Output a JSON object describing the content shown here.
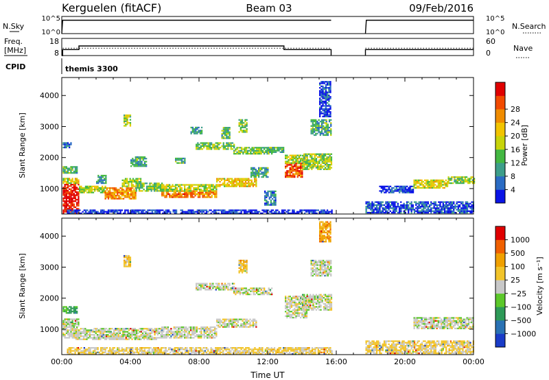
{
  "header": {
    "station": "Kerguelen (fitACF)",
    "beam": "Beam 03",
    "date": "09/Feb/2016"
  },
  "chart_data": [
    {
      "type": "line",
      "panel": "noise",
      "left_label": "N.Sky",
      "right_label": "N.Search",
      "left_ticks": [
        "10^5",
        "10^0"
      ],
      "right_ticks": [
        "10^5",
        "10^0"
      ],
      "series": [
        {
          "name": "N.Sky",
          "style": "solid",
          "segments": [
            {
              "x": [
                0.0,
                0.05,
                0.1,
                15.7
              ],
              "y": [
                0,
                3.9,
                3.9,
                3.9
              ]
            },
            {
              "x": [
                17.7,
                17.75,
                24.0
              ],
              "y": [
                0,
                3.9,
                3.9
              ]
            }
          ]
        },
        {
          "name": "N.Search",
          "style": "dotted",
          "segments": []
        }
      ]
    },
    {
      "type": "line",
      "panel": "frequency",
      "left_label_lines": [
        "Freq.",
        "[MHz]"
      ],
      "right_label": "Nave",
      "left_ticks": [
        "18",
        "8"
      ],
      "right_ticks": [
        "60",
        "0"
      ],
      "ylim": [
        8,
        18
      ],
      "series": [
        {
          "name": "Freq.",
          "style": "solid",
          "segments": [
            {
              "x": [
                0.0,
                0.05,
                0.05,
                1.0,
                1.0,
                12.95,
                12.95,
                15.7,
                15.7
              ],
              "y": [
                8,
                8,
                11.5,
                11.5,
                13.6,
                13.6,
                11.5,
                11.5,
                8
              ]
            },
            {
              "x": [
                17.7,
                17.7,
                24.0
              ],
              "y": [
                8,
                11.5,
                11.5
              ]
            }
          ]
        },
        {
          "name": "Nave",
          "style": "dotted",
          "segments": [
            {
              "x": [
                0.05,
                15.7
              ],
              "y": [
                12.3,
                12.3
              ]
            },
            {
              "x": [
                17.7,
                24.0
              ],
              "y": [
                12.3,
                12.3
              ]
            }
          ]
        }
      ]
    },
    {
      "type": "table",
      "panel": "cpid",
      "label": "CPID",
      "entries": [
        {
          "time": 0.05,
          "text": "themis 3300"
        }
      ]
    },
    {
      "type": "heatmap",
      "panel": "power",
      "ylabel": "Slant Range [km]",
      "xlim": [
        0,
        24
      ],
      "ylim": [
        180,
        4580
      ],
      "yticks": [
        1000,
        2000,
        3000,
        4000
      ],
      "colorbar": {
        "label": "Power [dB]",
        "ticks": [
          "4",
          "8",
          "12",
          "16",
          "20",
          "24",
          "28"
        ],
        "colors": [
          "#0a14e6",
          "#2b6cc4",
          "#3d9e8a",
          "#44b842",
          "#c8d40a",
          "#f2c400",
          "#f08c00",
          "#f24a00",
          "#e00000"
        ]
      },
      "features": [
        {
          "t0": 0.05,
          "t1": 1.0,
          "r0": 180,
          "r1": 1150,
          "level": 0.97
        },
        {
          "t0": 0.05,
          "t1": 1.0,
          "r0": 1150,
          "r1": 1300,
          "level": 0.55
        },
        {
          "t0": 0.05,
          "t1": 0.85,
          "r0": 1480,
          "r1": 1720,
          "level": 0.38
        },
        {
          "t0": 0.05,
          "t1": 0.5,
          "r0": 2300,
          "r1": 2450,
          "level": 0.15
        },
        {
          "t0": 1.0,
          "t1": 2.5,
          "r0": 850,
          "r1": 1050,
          "level": 0.5
        },
        {
          "t0": 2.0,
          "t1": 2.6,
          "r0": 1150,
          "r1": 1400,
          "level": 0.28
        },
        {
          "t0": 2.5,
          "t1": 4.3,
          "r0": 650,
          "r1": 1000,
          "level": 0.72
        },
        {
          "t0": 3.5,
          "t1": 4.6,
          "r0": 1050,
          "r1": 1300,
          "level": 0.45
        },
        {
          "t0": 3.6,
          "t1": 4.0,
          "r0": 3000,
          "r1": 3350,
          "level": 0.48
        },
        {
          "t0": 4.0,
          "t1": 4.9,
          "r0": 1700,
          "r1": 2000,
          "level": 0.3
        },
        {
          "t0": 4.3,
          "t1": 5.8,
          "r0": 900,
          "r1": 1150,
          "level": 0.42
        },
        {
          "t0": 5.8,
          "t1": 9.0,
          "r0": 700,
          "r1": 900,
          "level": 0.75
        },
        {
          "t0": 5.8,
          "t1": 9.0,
          "r0": 900,
          "r1": 1100,
          "level": 0.5
        },
        {
          "t0": 6.6,
          "t1": 7.2,
          "r0": 1800,
          "r1": 1950,
          "level": 0.32
        },
        {
          "t0": 7.8,
          "t1": 10.0,
          "r0": 2250,
          "r1": 2450,
          "level": 0.4
        },
        {
          "t0": 7.5,
          "t1": 8.2,
          "r0": 2750,
          "r1": 2950,
          "level": 0.28
        },
        {
          "t0": 9.0,
          "t1": 11.3,
          "r0": 1050,
          "r1": 1300,
          "level": 0.6
        },
        {
          "t0": 9.3,
          "t1": 9.8,
          "r0": 2600,
          "r1": 2950,
          "level": 0.36
        },
        {
          "t0": 10.0,
          "t1": 12.2,
          "r0": 2100,
          "r1": 2300,
          "level": 0.4
        },
        {
          "t0": 10.3,
          "t1": 10.8,
          "r0": 2800,
          "r1": 3200,
          "level": 0.42
        },
        {
          "t0": 11.0,
          "t1": 12.0,
          "r0": 1350,
          "r1": 1650,
          "level": 0.32
        },
        {
          "t0": 11.8,
          "t1": 12.5,
          "r0": 450,
          "r1": 900,
          "level": 0.22
        },
        {
          "t0": 12.0,
          "t1": 12.9,
          "r0": 2150,
          "r1": 2300,
          "level": 0.35
        },
        {
          "t0": 13.0,
          "t1": 14.0,
          "r0": 1350,
          "r1": 1800,
          "level": 0.82
        },
        {
          "t0": 13.0,
          "t1": 14.3,
          "r0": 1800,
          "r1": 2050,
          "level": 0.5
        },
        {
          "t0": 14.0,
          "t1": 15.7,
          "r0": 1600,
          "r1": 2100,
          "level": 0.45
        },
        {
          "t0": 14.5,
          "t1": 15.7,
          "r0": 2700,
          "r1": 3200,
          "level": 0.32
        },
        {
          "t0": 15.0,
          "t1": 15.7,
          "r0": 3300,
          "r1": 4450,
          "level": 0.1
        },
        {
          "t0": 0.3,
          "t1": 15.7,
          "r0": 180,
          "r1": 300,
          "level": 0.06
        },
        {
          "t0": 17.7,
          "t1": 24.0,
          "r0": 200,
          "r1": 550,
          "level": 0.12
        },
        {
          "t0": 20.5,
          "t1": 22.5,
          "r0": 1000,
          "r1": 1250,
          "level": 0.55
        },
        {
          "t0": 22.5,
          "t1": 24.0,
          "r0": 1150,
          "r1": 1350,
          "level": 0.45
        },
        {
          "t0": 18.5,
          "t1": 20.5,
          "r0": 850,
          "r1": 1050,
          "level": 0.1
        }
      ]
    },
    {
      "type": "heatmap",
      "panel": "velocity",
      "ylabel": "Slant Range [km]",
      "xlabel": "Time UT",
      "xlim": [
        0,
        24
      ],
      "ylim": [
        180,
        4580
      ],
      "yticks": [
        1000,
        2000,
        3000,
        4000
      ],
      "xtick_labels": [
        "00:00",
        "04:00",
        "08:00",
        "12:00",
        "16:00",
        "20:00",
        "00:00"
      ],
      "xticks": [
        0,
        4,
        8,
        12,
        16,
        20,
        24
      ],
      "colorbar": {
        "label": "Velocity [m s⁻¹]",
        "ticks": [
          "1000",
          "500",
          "100",
          "25",
          "−25",
          "−100",
          "−500",
          "−1000"
        ],
        "colors": [
          "#1a3cc8",
          "#2a72b4",
          "#2e9a58",
          "#5cc82a",
          "#c8c8c8",
          "#f2c42a",
          "#f0a000",
          "#f06000",
          "#e00000"
        ]
      },
      "features": [
        {
          "t0": 0.05,
          "t1": 1.0,
          "r0": 700,
          "r1": 1150,
          "level": 0.5
        },
        {
          "t0": 0.05,
          "t1": 1.0,
          "r0": 1150,
          "r1": 1300,
          "level": 0.42
        },
        {
          "t0": 0.05,
          "t1": 0.85,
          "r0": 1500,
          "r1": 1700,
          "level": 0.32
        },
        {
          "t0": 0.8,
          "t1": 5.8,
          "r0": 650,
          "r1": 1000,
          "level": 0.5
        },
        {
          "t0": 3.6,
          "t1": 4.0,
          "r0": 3000,
          "r1": 3350,
          "level": 0.62
        },
        {
          "t0": 5.8,
          "t1": 9.0,
          "r0": 700,
          "r1": 1050,
          "level": 0.5
        },
        {
          "t0": 7.8,
          "t1": 10.0,
          "r0": 2250,
          "r1": 2450,
          "level": 0.5
        },
        {
          "t0": 9.0,
          "t1": 11.3,
          "r0": 1050,
          "r1": 1300,
          "level": 0.5
        },
        {
          "t0": 10.0,
          "t1": 12.2,
          "r0": 2100,
          "r1": 2300,
          "level": 0.5
        },
        {
          "t0": 10.3,
          "t1": 10.8,
          "r0": 2800,
          "r1": 3200,
          "level": 0.62
        },
        {
          "t0": 13.0,
          "t1": 14.3,
          "r0": 1350,
          "r1": 2050,
          "level": 0.5
        },
        {
          "t0": 14.0,
          "t1": 15.7,
          "r0": 1600,
          "r1": 2100,
          "level": 0.5
        },
        {
          "t0": 14.5,
          "t1": 15.7,
          "r0": 2700,
          "r1": 3200,
          "level": 0.5
        },
        {
          "t0": 15.0,
          "t1": 15.7,
          "r0": 3800,
          "r1": 4450,
          "level": 0.7
        },
        {
          "t0": 0.3,
          "t1": 15.7,
          "r0": 180,
          "r1": 400,
          "level": 0.58
        },
        {
          "t0": 17.7,
          "t1": 24.0,
          "r0": 200,
          "r1": 600,
          "level": 0.58
        },
        {
          "t0": 20.5,
          "t1": 24.0,
          "r0": 1000,
          "r1": 1350,
          "level": 0.5
        }
      ]
    }
  ]
}
